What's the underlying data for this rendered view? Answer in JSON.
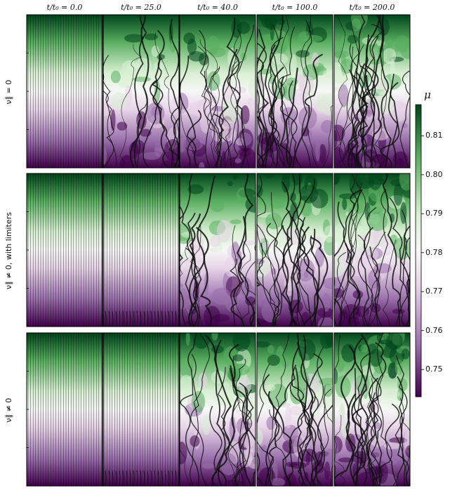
{
  "figure": {
    "column_titles": [
      "t/t₀ = 0.0",
      "t/t₀ = 25.0",
      "t/t₀ = 40.0",
      "t/t₀ = 100.0",
      "t/t₀ = 200.0"
    ],
    "row_labels": [
      "ν∥ = 0",
      "ν∥ ≠ 0, with limiters",
      "ν∥ ≠ 0"
    ],
    "colorbar": {
      "label": "μ",
      "ticks": [
        "0.81",
        "0.80",
        "0.79",
        "0.78",
        "0.77",
        "0.76",
        "0.75"
      ],
      "tick_values": [
        0.81,
        0.8,
        0.79,
        0.78,
        0.77,
        0.76,
        0.75
      ],
      "range": [
        0.743,
        0.818
      ],
      "colormap": "PRGn"
    },
    "colors": {
      "green_dark": "#00441b",
      "green_mid": "#5aae61",
      "green_light": "#d9f0d3",
      "neutral": "#f7f7f7",
      "purple_light": "#e7d4e8",
      "purple_mid": "#9970ab",
      "purple_dark": "#40004b"
    }
  }
}
